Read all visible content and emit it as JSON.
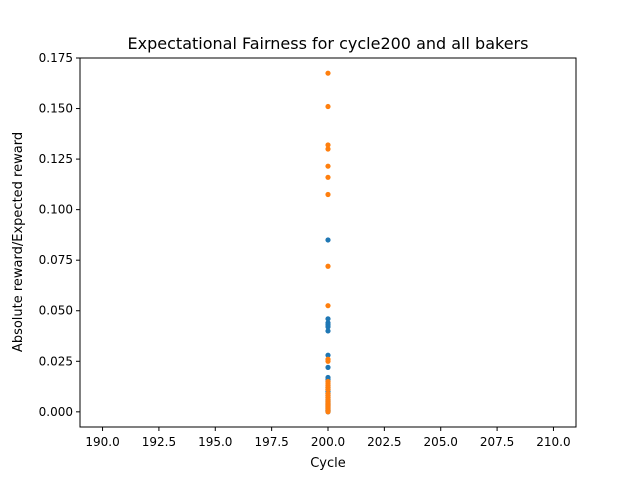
{
  "chart_data": {
    "type": "scatter",
    "title": "Expectational Fairness for cycle200 and all bakers",
    "xlabel": "Cycle",
    "ylabel": "Absolute reward/Expected reward",
    "xlim": [
      189.0,
      211.0
    ],
    "ylim": [
      -0.0075,
      0.175
    ],
    "xticks": [
      "190.0",
      "192.5",
      "195.0",
      "197.5",
      "200.0",
      "202.5",
      "205.0",
      "207.5",
      "210.0"
    ],
    "yticks": [
      "0.000",
      "0.025",
      "0.050",
      "0.075",
      "0.100",
      "0.125",
      "0.150",
      "0.175"
    ],
    "grid": false,
    "series": [
      {
        "color": "#1f77b4",
        "x": [
          200,
          200,
          200,
          200,
          200,
          200,
          200,
          200,
          200,
          200,
          200,
          200,
          200,
          200,
          200,
          200,
          200,
          200,
          200,
          200,
          200,
          200,
          200,
          200,
          200,
          200,
          200,
          200,
          200,
          200,
          200,
          200,
          200,
          200
        ],
        "y": [
          0.085,
          0.046,
          0.044,
          0.043,
          0.042,
          0.04,
          0.028,
          0.022,
          0.017,
          0.016,
          0.015,
          0.013,
          0.012,
          0.011,
          0.01,
          0.009,
          0.008,
          0.007,
          0.006,
          0.0055,
          0.005,
          0.0045,
          0.004,
          0.0035,
          0.003,
          0.0025,
          0.002,
          0.0015,
          0.001,
          0.0008,
          0.0006,
          0.0004,
          0.0002,
          0.0
        ]
      },
      {
        "color": "#ff7f0e",
        "x": [
          200,
          200,
          200,
          200,
          200,
          200,
          200,
          200,
          200,
          200,
          200,
          200,
          200,
          200,
          200,
          200,
          200,
          200,
          200,
          200,
          200,
          200,
          200,
          200,
          200,
          200,
          200,
          200,
          200,
          200
        ],
        "y": [
          0.1675,
          0.151,
          0.132,
          0.13,
          0.1215,
          0.116,
          0.1075,
          0.072,
          0.0525,
          0.026,
          0.025,
          0.015,
          0.014,
          0.013,
          0.012,
          0.011,
          0.009,
          0.008,
          0.007,
          0.006,
          0.005,
          0.004,
          0.0035,
          0.003,
          0.0025,
          0.002,
          0.0015,
          0.001,
          0.0005,
          0.0
        ]
      }
    ]
  }
}
